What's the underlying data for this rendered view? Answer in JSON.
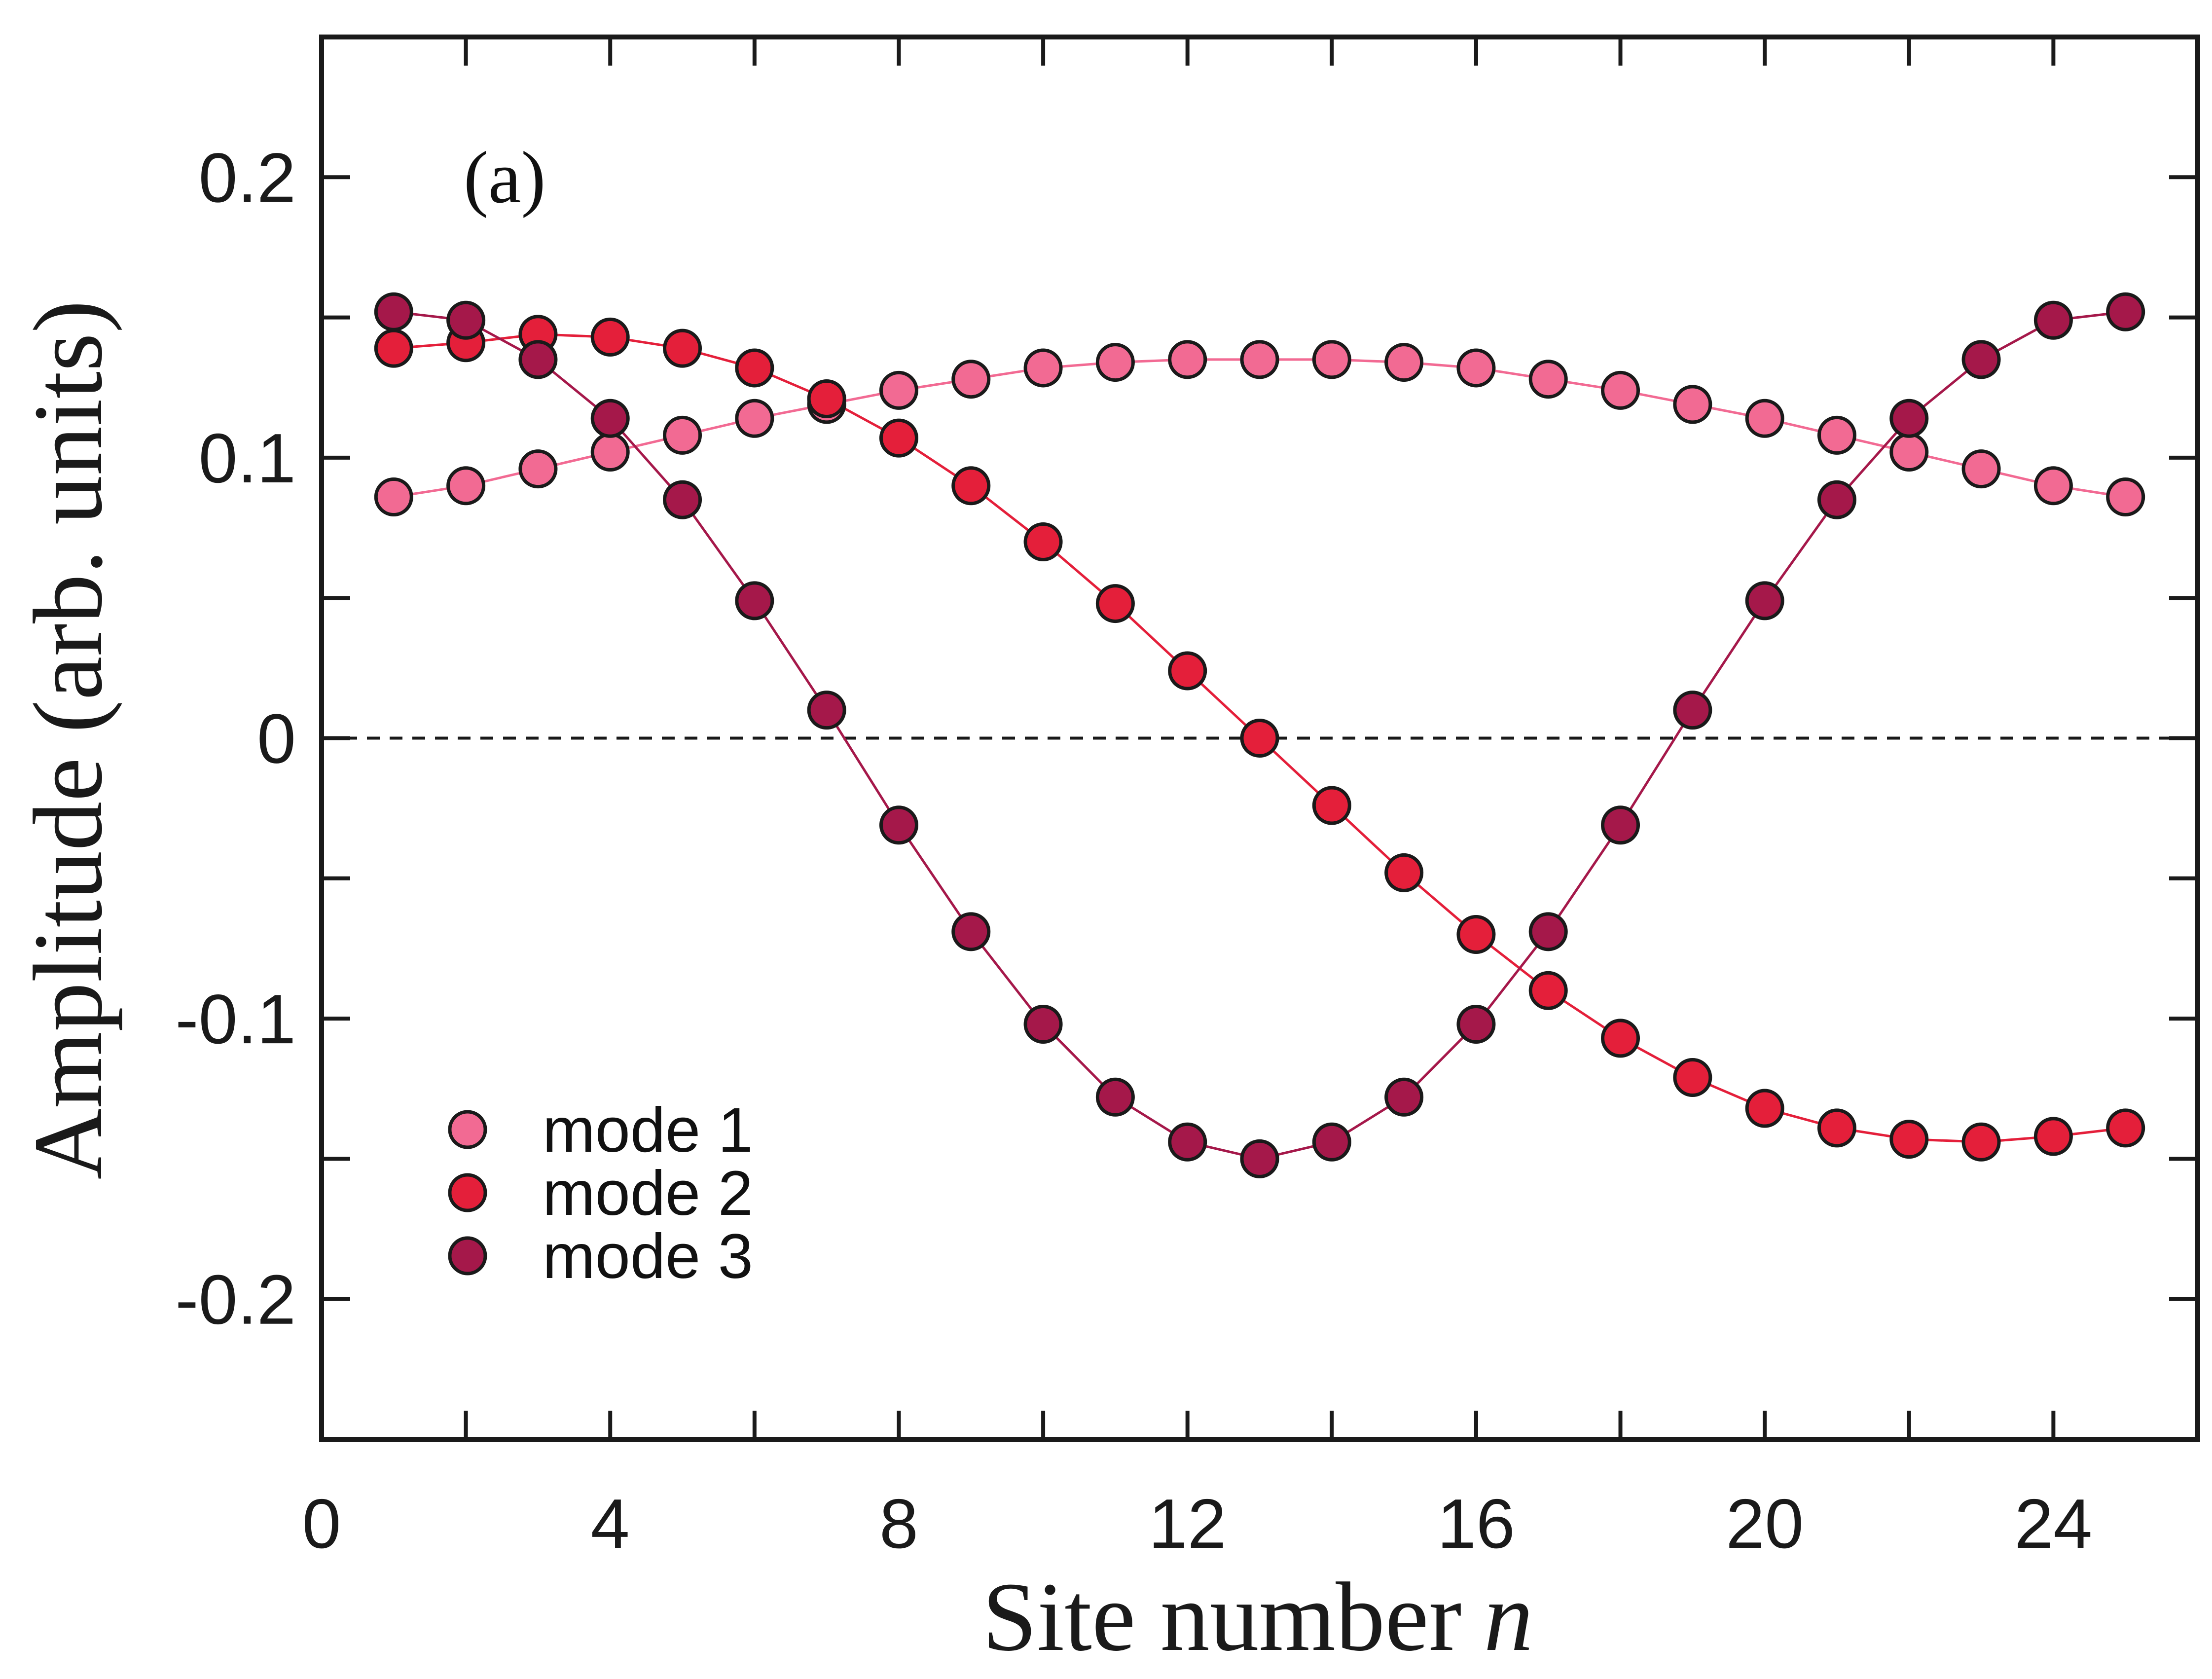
{
  "chart_data": {
    "type": "line",
    "title": "",
    "panel_label": "(a)",
    "xlabel": "Site number",
    "xlabel_var": "n",
    "ylabel": "Amplitude (arb. units)",
    "xlim": [
      0,
      26
    ],
    "ylim": [
      -0.25,
      0.25
    ],
    "xticks": [
      0,
      4,
      8,
      12,
      16,
      20,
      24
    ],
    "xticks_minor": [
      2,
      6,
      10,
      14,
      18,
      22
    ],
    "yticks": [
      -0.2,
      -0.1,
      0,
      0.1,
      0.2
    ],
    "yticks_minor": [
      -0.15,
      -0.05,
      0.05,
      0.15
    ],
    "ytick_labels": [
      "-0.2",
      "-0.1",
      "0",
      "0.1",
      "0.2"
    ],
    "zero_line": true,
    "grid": false,
    "legend_position": "lower-left",
    "x": [
      1,
      2,
      3,
      4,
      5,
      6,
      7,
      8,
      9,
      10,
      11,
      12,
      13,
      14,
      15,
      16,
      17,
      18,
      19,
      20,
      21,
      22,
      23,
      24,
      25
    ],
    "series": [
      {
        "name": "mode 1",
        "color": "#f26a93",
        "values": [
          0.086,
          0.09,
          0.096,
          0.102,
          0.108,
          0.114,
          0.119,
          0.124,
          0.128,
          0.132,
          0.134,
          0.135,
          0.135,
          0.135,
          0.134,
          0.132,
          0.128,
          0.124,
          0.119,
          0.114,
          0.108,
          0.102,
          0.096,
          0.09,
          0.086
        ]
      },
      {
        "name": "mode 2",
        "color": "#e41f3a",
        "values": [
          0.139,
          0.141,
          0.144,
          0.143,
          0.139,
          0.132,
          0.121,
          0.107,
          0.09,
          0.07,
          0.048,
          0.024,
          0.0,
          -0.024,
          -0.048,
          -0.07,
          -0.09,
          -0.107,
          -0.121,
          -0.132,
          -0.139,
          -0.143,
          -0.144,
          -0.142,
          -0.139
        ]
      },
      {
        "name": "mode 3",
        "color": "#a5184a",
        "values": [
          0.152,
          0.149,
          0.135,
          0.114,
          0.085,
          0.049,
          0.01,
          -0.031,
          -0.069,
          -0.102,
          -0.128,
          -0.144,
          -0.15,
          -0.144,
          -0.128,
          -0.102,
          -0.069,
          -0.031,
          0.01,
          0.049,
          0.085,
          0.114,
          0.135,
          0.149,
          0.152
        ]
      }
    ]
  }
}
